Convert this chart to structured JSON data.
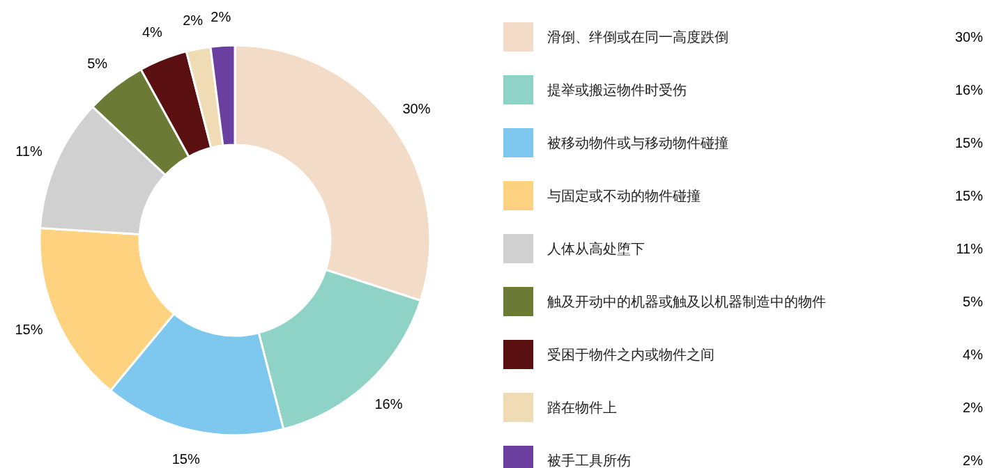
{
  "chart_data": {
    "type": "donut",
    "categories": [
      "滑倒、绊倒或在同一高度跌倒",
      "提举或搬运物件时受伤",
      "被移动物件或与移动物件碰撞",
      "与固定或不动的物件碰撞",
      "人体从高处堕下",
      "触及开动中的机器或触及以机器制造中的物件",
      "受困于物件之内或物件之间",
      "踏在物件上",
      "被手工具所伤"
    ],
    "values": [
      30,
      16,
      15,
      15,
      11,
      5,
      4,
      2,
      2
    ],
    "colors": [
      "#f2dcc8",
      "#8fd3c6",
      "#7ec8f0",
      "#ffd27f",
      "#d0d0d0",
      "#6b7a35",
      "#5a1010",
      "#f0dcb4",
      "#6a3fa0"
    ],
    "value_labels": [
      "30%",
      "16%",
      "15%",
      "15%",
      "11%",
      "5%",
      "4%",
      "2%",
      "2%"
    ],
    "legend": "right"
  }
}
